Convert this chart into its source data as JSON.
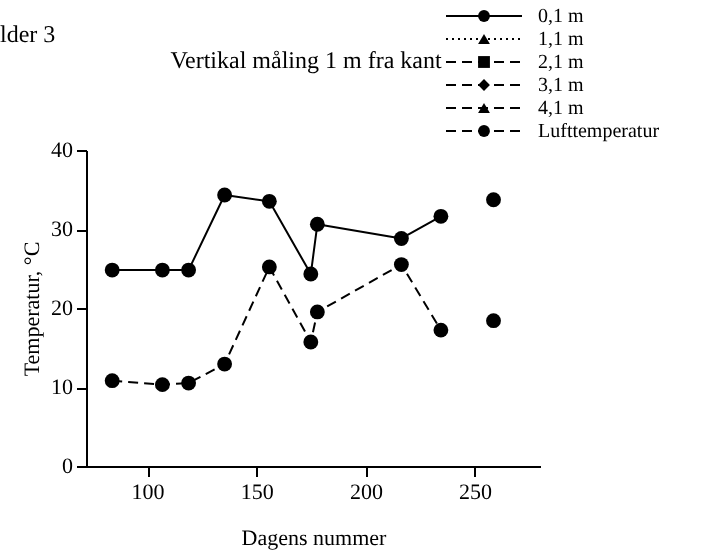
{
  "chart_data": {
    "type": "line",
    "title": "Vertikal måling 1 m fra kant",
    "xlabel": "Dagens nummer",
    "ylabel": "Temperatur, °C",
    "annotations": [
      "lder 3"
    ],
    "x": [
      84,
      107,
      119,
      135.5,
      156,
      175,
      178,
      216.5,
      234.6,
      246,
      258.7
    ],
    "series": [
      {
        "name": "0,1 m",
        "color": "#000000",
        "marker": "circle",
        "line_style": "solid",
        "values": [
          24.8,
          24.8,
          24.8,
          34.3,
          33.5,
          24.3,
          30.6,
          28.8,
          31.6,
          null,
          33.7
        ]
      },
      {
        "name": "1,1 m",
        "color": "#000000",
        "marker": "triangle",
        "line_style": "dotted",
        "values": [
          null,
          null,
          null,
          null,
          null,
          null,
          null,
          null,
          null,
          null,
          null
        ]
      },
      {
        "name": "2,1 m",
        "color": "#000000",
        "marker": "square",
        "line_style": "dashed",
        "values": [
          null,
          null,
          null,
          null,
          null,
          null,
          null,
          null,
          null,
          null,
          null
        ]
      },
      {
        "name": "3,1 m",
        "color": "#000000",
        "marker": "diamond",
        "line_style": "dashed",
        "values": [
          null,
          null,
          null,
          null,
          null,
          null,
          null,
          null,
          null,
          null,
          null
        ]
      },
      {
        "name": "4,1 m",
        "color": "#000000",
        "marker": "triangle",
        "line_style": "dashed",
        "values": [
          null,
          null,
          null,
          null,
          null,
          null,
          null,
          null,
          null,
          null,
          null
        ]
      },
      {
        "name": "Lufttemperatur",
        "color": "#000000",
        "marker": "circle",
        "line_style": "dashed",
        "values": [
          10.8,
          10.3,
          10.5,
          12.9,
          25.2,
          15.7,
          19.5,
          25.5,
          17.2,
          null,
          18.4
        ]
      }
    ],
    "xlim": [
      72,
      280
    ],
    "xticks": [
      100,
      150,
      200,
      250
    ],
    "ylim": [
      0,
      40
    ],
    "yticks": [
      0,
      10,
      20,
      30,
      40
    ],
    "grid": false,
    "legend": "top right"
  }
}
